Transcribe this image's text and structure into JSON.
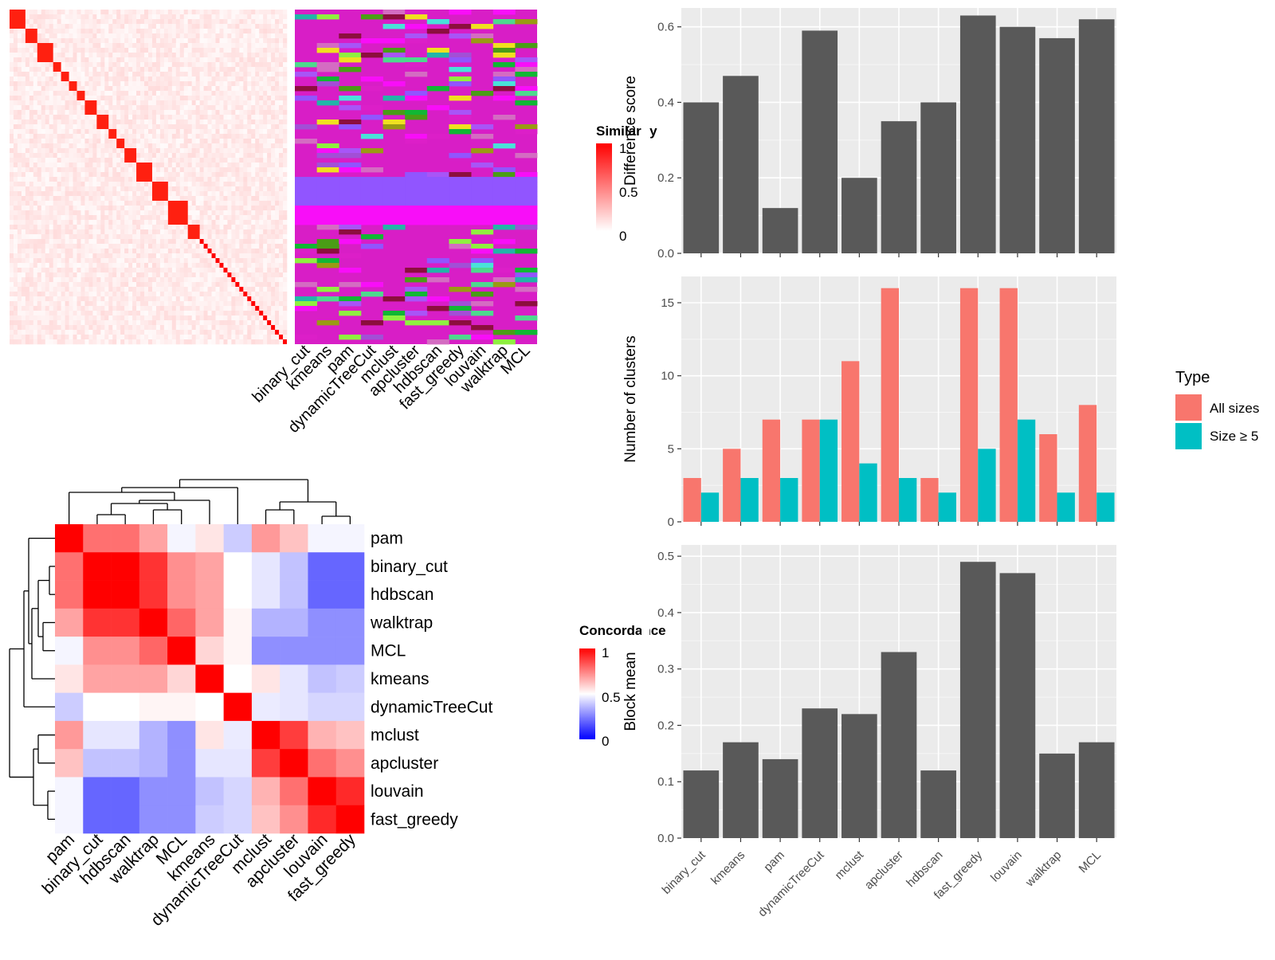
{
  "methods": [
    "binary_cut",
    "kmeans",
    "pam",
    "dynamicTreeCut",
    "mclust",
    "apcluster",
    "hdbscan",
    "fast_greedy",
    "louvain",
    "walktrap",
    "MCL"
  ],
  "similarity_legend": {
    "title": "Similarity",
    "ticks": [
      "1",
      "0.5",
      "0"
    ]
  },
  "concordance_legend": {
    "title": "Concordance",
    "ticks": [
      "1",
      "0.5",
      "0"
    ]
  },
  "type_legend": {
    "title": "Type",
    "items": [
      "All sizes",
      "Size ≥ 5"
    ],
    "colors": [
      "#F8766D",
      "#00BFC4"
    ]
  },
  "concordance_order": [
    "pam",
    "binary_cut",
    "hdbscan",
    "walktrap",
    "MCL",
    "kmeans",
    "dynamicTreeCut",
    "mclust",
    "apcluster",
    "louvain",
    "fast_greedy"
  ],
  "concordance_matrix": [
    [
      1.0,
      0.78,
      0.78,
      0.68,
      0.48,
      0.55,
      0.4,
      0.7,
      0.62,
      0.48,
      0.48
    ],
    [
      0.78,
      1.0,
      1.0,
      0.9,
      0.72,
      0.68,
      0.5,
      0.45,
      0.38,
      0.2,
      0.2
    ],
    [
      0.78,
      1.0,
      1.0,
      0.9,
      0.72,
      0.68,
      0.5,
      0.45,
      0.38,
      0.2,
      0.2
    ],
    [
      0.68,
      0.9,
      0.9,
      1.0,
      0.8,
      0.68,
      0.52,
      0.35,
      0.35,
      0.28,
      0.28
    ],
    [
      0.48,
      0.72,
      0.72,
      0.8,
      1.0,
      0.58,
      0.52,
      0.28,
      0.28,
      0.28,
      0.28
    ],
    [
      0.55,
      0.68,
      0.68,
      0.68,
      0.58,
      1.0,
      0.5,
      0.55,
      0.45,
      0.38,
      0.4
    ],
    [
      0.4,
      0.5,
      0.5,
      0.52,
      0.52,
      0.5,
      1.0,
      0.46,
      0.45,
      0.42,
      0.42
    ],
    [
      0.7,
      0.45,
      0.45,
      0.35,
      0.28,
      0.55,
      0.46,
      1.0,
      0.88,
      0.65,
      0.62
    ],
    [
      0.62,
      0.38,
      0.38,
      0.35,
      0.28,
      0.45,
      0.45,
      0.88,
      1.0,
      0.78,
      0.72
    ],
    [
      0.48,
      0.2,
      0.2,
      0.28,
      0.28,
      0.38,
      0.42,
      0.65,
      0.78,
      1.0,
      0.92
    ],
    [
      0.48,
      0.2,
      0.2,
      0.28,
      0.28,
      0.4,
      0.42,
      0.62,
      0.72,
      0.92,
      1.0
    ]
  ],
  "chart_data": [
    {
      "type": "bar",
      "categories": [
        "binary_cut",
        "kmeans",
        "pam",
        "dynamicTreeCut",
        "mclust",
        "apcluster",
        "hdbscan",
        "fast_greedy",
        "louvain",
        "walktrap",
        "MCL"
      ],
      "values": [
        0.4,
        0.47,
        0.12,
        0.59,
        0.2,
        0.35,
        0.4,
        0.63,
        0.6,
        0.57,
        0.62
      ],
      "ylabel": "Difference score",
      "ylim": [
        0,
        0.65
      ],
      "yticks": [
        "0.0",
        "0.2",
        "0.4",
        "0.6"
      ],
      "grid": true
    },
    {
      "type": "bar",
      "categories": [
        "binary_cut",
        "kmeans",
        "pam",
        "dynamicTreeCut",
        "mclust",
        "apcluster",
        "hdbscan",
        "fast_greedy",
        "louvain",
        "walktrap",
        "MCL"
      ],
      "series": [
        {
          "name": "All sizes",
          "values": [
            3,
            5,
            7,
            7,
            11,
            16,
            3,
            16,
            16,
            6,
            8
          ]
        },
        {
          "name": "Size ≥ 5",
          "values": [
            2,
            3,
            3,
            7,
            4,
            3,
            2,
            5,
            7,
            2,
            2
          ]
        }
      ],
      "ylabel": "Number of clusters",
      "ylim": [
        0,
        16.8
      ],
      "yticks": [
        "0",
        "5",
        "10",
        "15"
      ],
      "legend": "right",
      "grid": true
    },
    {
      "type": "bar",
      "categories": [
        "binary_cut",
        "kmeans",
        "pam",
        "dynamicTreeCut",
        "mclust",
        "apcluster",
        "hdbscan",
        "fast_greedy",
        "louvain",
        "walktrap",
        "MCL"
      ],
      "values": [
        0.12,
        0.17,
        0.14,
        0.23,
        0.22,
        0.33,
        0.12,
        0.49,
        0.47,
        0.15,
        0.17
      ],
      "ylabel": "Block mean",
      "ylim": [
        0,
        0.52
      ],
      "yticks": [
        "0.0",
        "0.1",
        "0.2",
        "0.3",
        "0.4",
        "0.5"
      ],
      "grid": true
    },
    {
      "type": "heatmap",
      "ylabel": "",
      "xlabel": "",
      "note_source": "concordance_matrix"
    }
  ]
}
